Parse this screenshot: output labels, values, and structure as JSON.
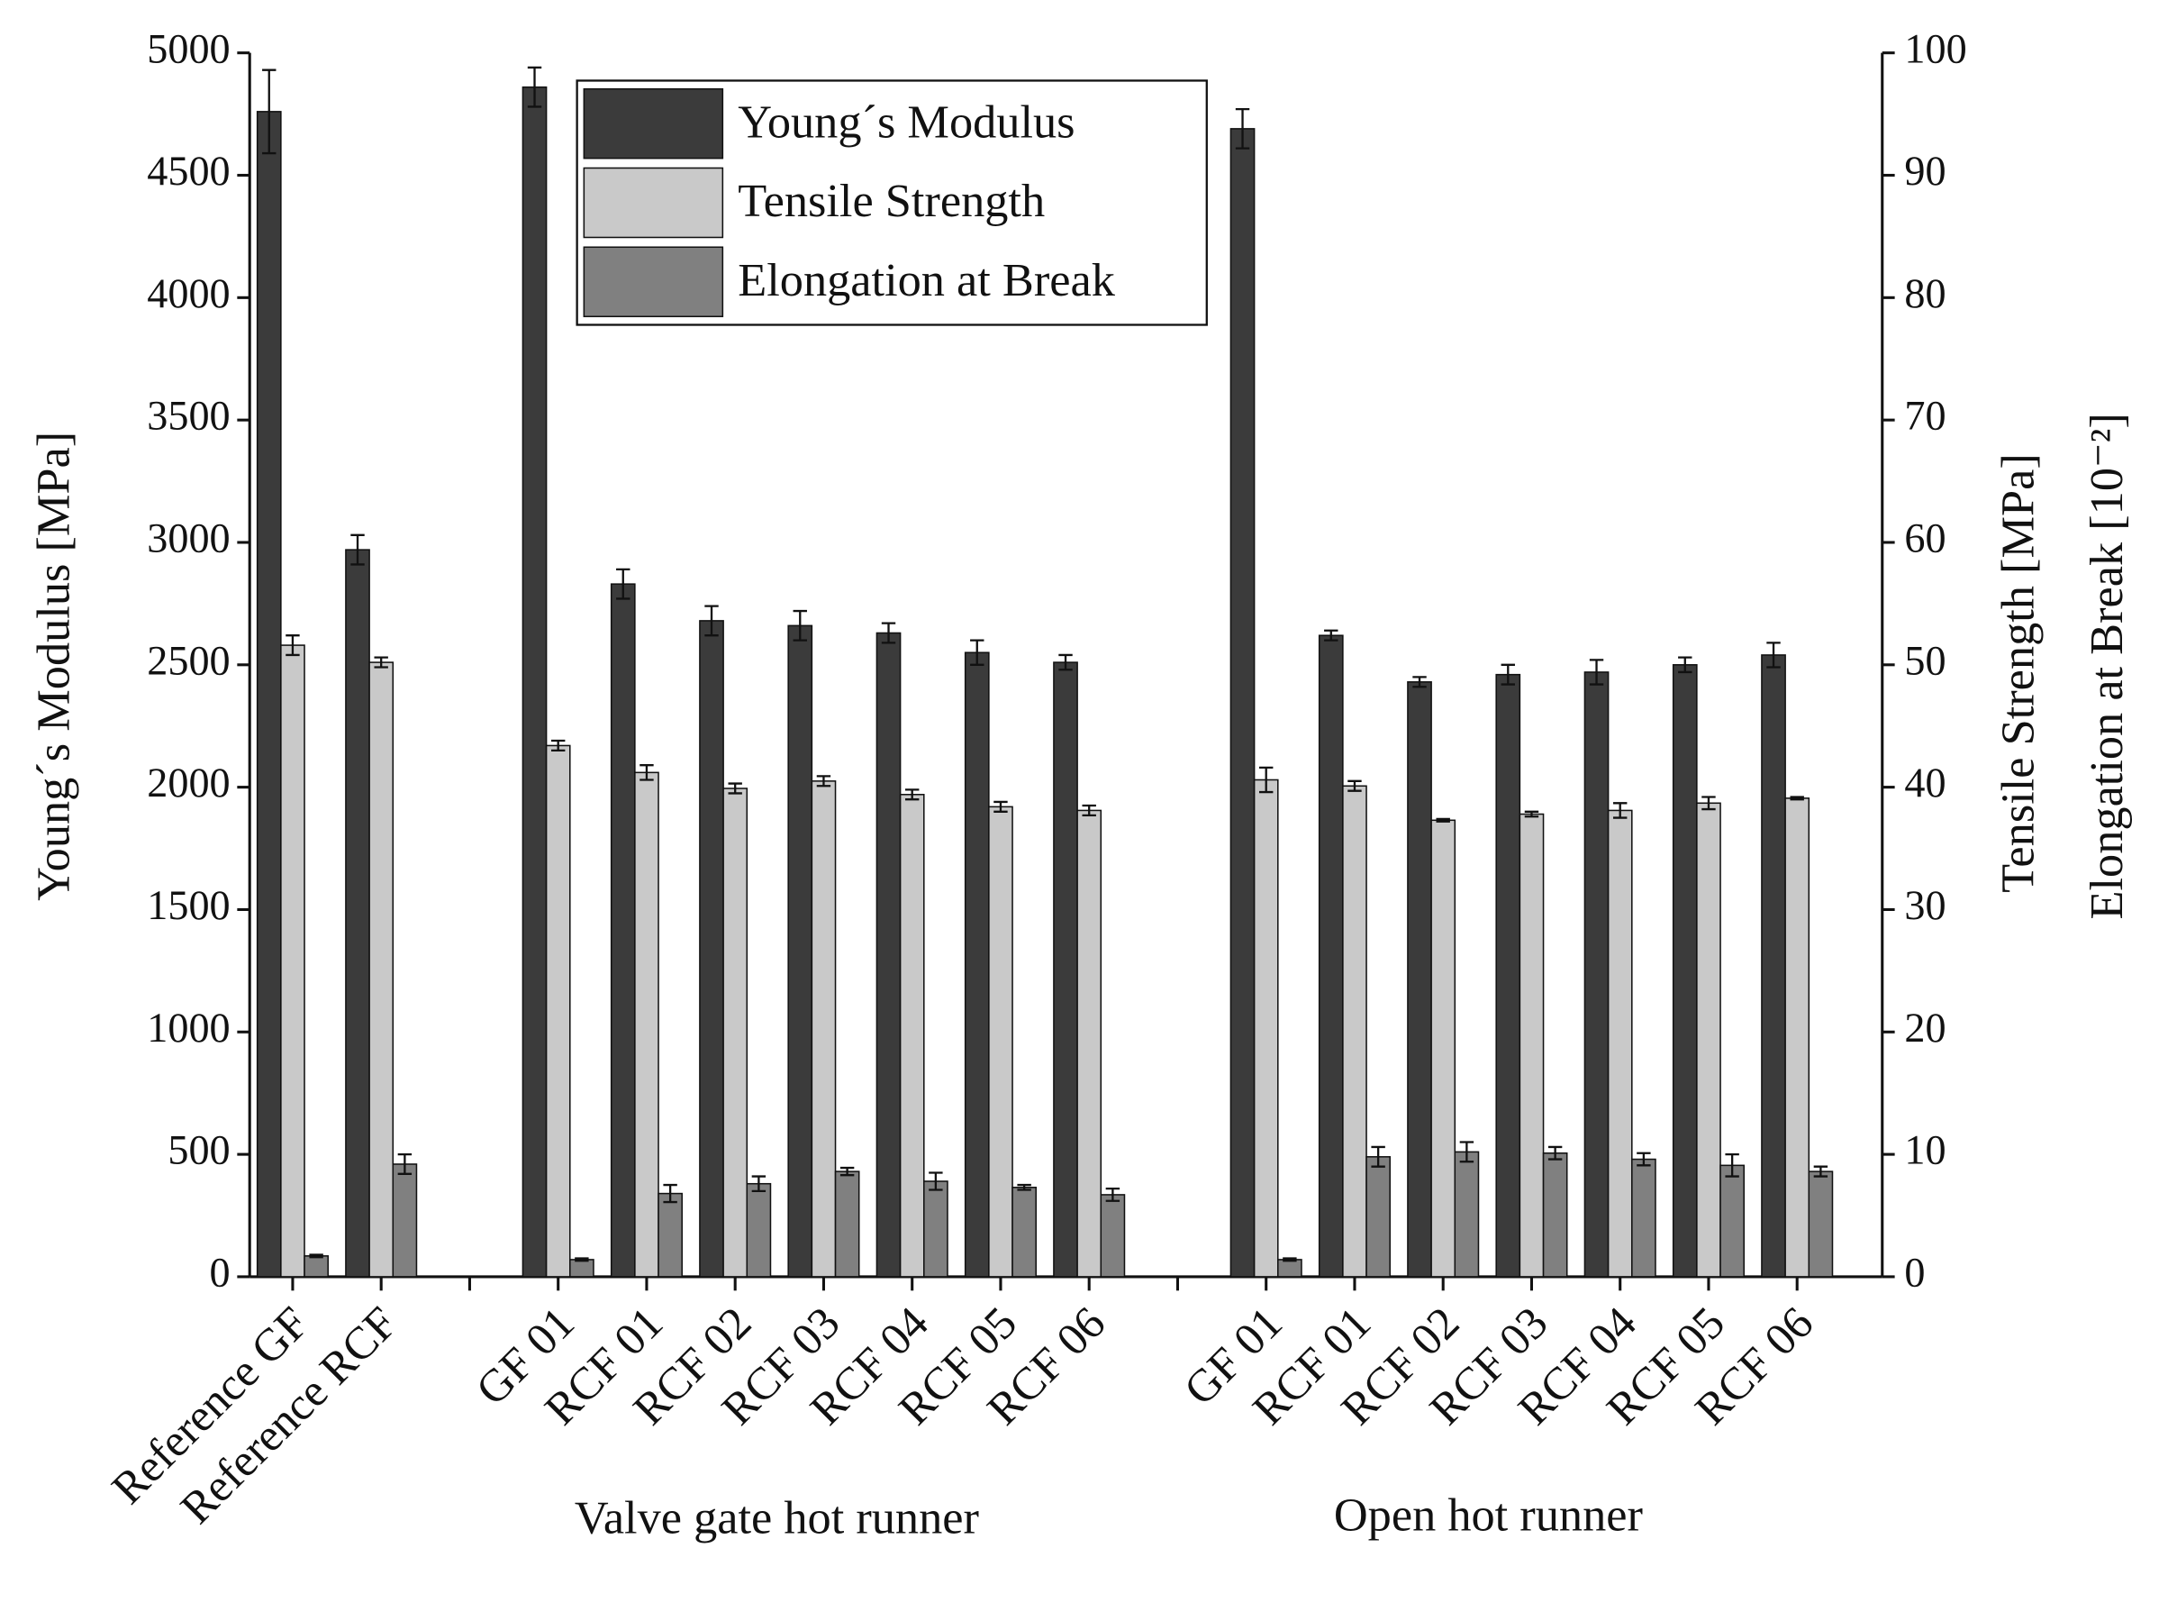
{
  "chart_data": {
    "type": "bar",
    "categories": [
      "Reference GF",
      "Reference RCF",
      null,
      "GF 01",
      "RCF 01",
      "RCF 02",
      "RCF 03",
      "RCF 04",
      "RCF 05",
      "RCF 06",
      null,
      "GF 01",
      "RCF 01",
      "RCF 02",
      "RCF 03",
      "RCF 04",
      "RCF 05",
      "RCF 06"
    ],
    "group_labels": [
      "Valve gate hot runner",
      "Open hot runner"
    ],
    "y_label": "Young´s Modulus [MPa]",
    "y2_labels": [
      "Tensile Strength [MPa]",
      "Elongation at Break [10⁻²]"
    ],
    "ylim": [
      0,
      5000
    ],
    "yticks": [
      0,
      500,
      1000,
      1500,
      2000,
      2500,
      3000,
      3500,
      4000,
      4500,
      5000
    ],
    "y2lim": [
      0,
      100
    ],
    "y2ticks": [
      0,
      10,
      20,
      30,
      40,
      50,
      60,
      70,
      80,
      90,
      100
    ],
    "legend": "top-left",
    "series": [
      {
        "name": "Young´s Modulus",
        "color": "#3b3b3b",
        "values": [
          4760,
          2970,
          null,
          4860,
          2830,
          2680,
          2660,
          2630,
          2550,
          2510,
          null,
          4690,
          2620,
          2430,
          2460,
          2470,
          2500,
          2540
        ],
        "errors": [
          170,
          60,
          null,
          80,
          60,
          60,
          60,
          40,
          50,
          30,
          null,
          80,
          20,
          20,
          40,
          50,
          30,
          50
        ]
      },
      {
        "name": "Tensile Strength",
        "color": "#c9c9c9",
        "axis": "y2",
        "values": [
          51.6,
          50.2,
          null,
          43.4,
          41.2,
          39.9,
          40.5,
          39.4,
          38.4,
          38.1,
          null,
          40.6,
          40.1,
          37.3,
          37.8,
          38.1,
          38.7,
          39.1
        ],
        "errors": [
          0.8,
          0.4,
          null,
          0.4,
          0.6,
          0.4,
          0.4,
          0.4,
          0.4,
          0.4,
          null,
          1.0,
          0.4,
          0.1,
          0.2,
          0.6,
          0.5,
          0.1
        ]
      },
      {
        "name": "Elongation at Break",
        "color": "#808080",
        "axis": "y2",
        "values": [
          1.7,
          9.2,
          null,
          1.4,
          6.8,
          7.6,
          8.6,
          7.8,
          7.3,
          6.7,
          null,
          1.4,
          9.8,
          10.2,
          10.1,
          9.6,
          9.1,
          8.6
        ],
        "errors": [
          0.1,
          0.8,
          null,
          0.1,
          0.7,
          0.6,
          0.3,
          0.7,
          0.2,
          0.5,
          null,
          0.1,
          0.8,
          0.8,
          0.5,
          0.5,
          0.9,
          0.4
        ]
      }
    ]
  }
}
